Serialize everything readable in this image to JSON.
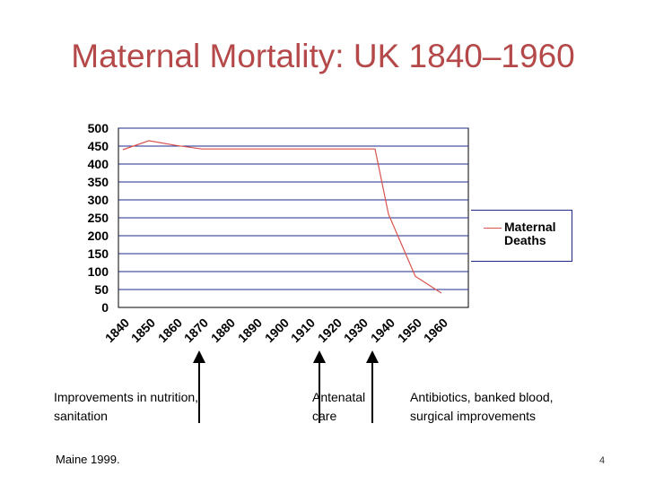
{
  "slide": {
    "title": "Maternal Mortality: UK 1840–1960",
    "source": "Maine 1999.",
    "page_number": "4"
  },
  "annotations": [
    {
      "text": "Improvements in nutrition, sanitation",
      "year": 1870
    },
    {
      "text": "Antenatal care",
      "year": 1915
    },
    {
      "text": "Antibiotics, banked blood, surgical improvements",
      "year": 1935
    }
  ],
  "chart_data": {
    "type": "line",
    "title": "",
    "xlabel": "",
    "ylabel": "",
    "x_ticks": [
      "1840",
      "1850",
      "1860",
      "1870",
      "1880",
      "1890",
      "1900",
      "1910",
      "1920",
      "1930",
      "1940",
      "1950",
      "1960"
    ],
    "y_ticks": [
      0,
      50,
      100,
      150,
      200,
      250,
      300,
      350,
      400,
      450,
      500
    ],
    "ylim": [
      0,
      500
    ],
    "xlim": [
      1840,
      1960
    ],
    "grid": true,
    "legend_position": "right",
    "series": [
      {
        "name": "Maternal Deaths",
        "color": "#d9534f",
        "x": [
          1841,
          1851,
          1861,
          1871,
          1881,
          1891,
          1901,
          1911,
          1921,
          1931,
          1936,
          1941,
          1951,
          1961
        ],
        "y": [
          440,
          465,
          452,
          442,
          442,
          442,
          442,
          442,
          442,
          442,
          442,
          260,
          87,
          40
        ]
      }
    ]
  },
  "colors": {
    "title": "#b5494a",
    "grid": "#1f2a8c",
    "series": "#d9534f"
  }
}
